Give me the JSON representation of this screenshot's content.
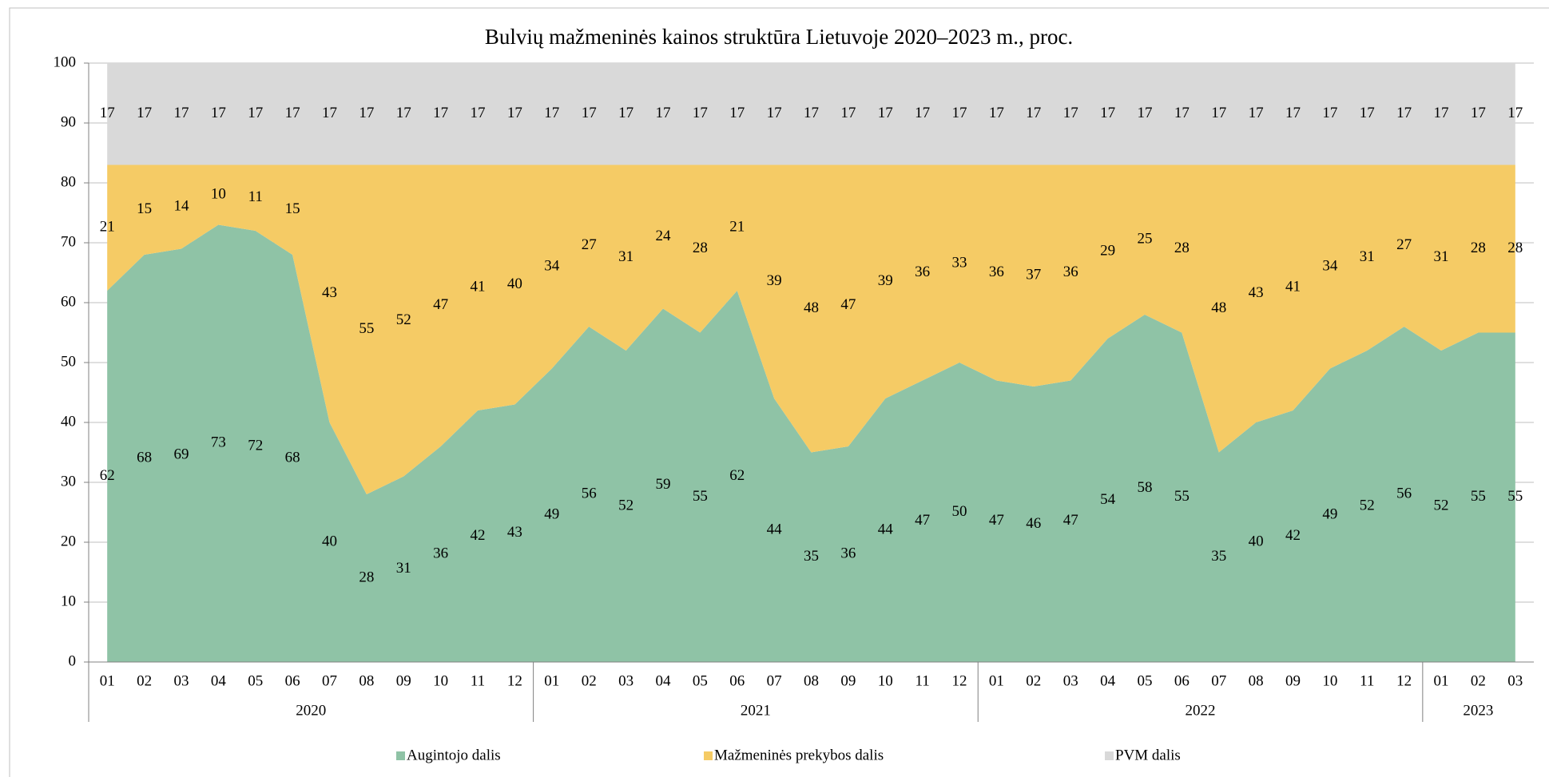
{
  "chart_data": {
    "type": "stacked_area",
    "title": "Bulvių mažmeninės kainos struktūra Lietuvoje 2020–2023 m., proc.",
    "groups": [
      {
        "label": "2020",
        "categories": [
          "01",
          "02",
          "03",
          "04",
          "05",
          "06",
          "07",
          "08",
          "09",
          "10",
          "11",
          "12"
        ]
      },
      {
        "label": "2021",
        "categories": [
          "01",
          "02",
          "03",
          "04",
          "05",
          "06",
          "07",
          "08",
          "09",
          "10",
          "11",
          "12"
        ]
      },
      {
        "label": "2022",
        "categories": [
          "01",
          "02",
          "03",
          "04",
          "05",
          "06",
          "07",
          "08",
          "09",
          "10",
          "11",
          "12"
        ]
      },
      {
        "label": "2023",
        "categories": [
          "01",
          "02",
          "03"
        ]
      }
    ],
    "series": [
      {
        "name": "Augintojo dalis",
        "color": "#8fc3a6",
        "values": [
          62,
          68,
          69,
          73,
          72,
          68,
          40,
          28,
          31,
          36,
          42,
          43,
          49,
          56,
          52,
          59,
          55,
          62,
          44,
          35,
          36,
          44,
          47,
          50,
          47,
          46,
          47,
          54,
          58,
          55,
          35,
          40,
          42,
          49,
          52,
          56,
          52,
          55,
          55
        ]
      },
      {
        "name": "Mažmeninės prekybos dalis",
        "color": "#f5cb65",
        "values": [
          21,
          15,
          14,
          10,
          11,
          15,
          43,
          55,
          52,
          47,
          41,
          40,
          34,
          27,
          31,
          24,
          28,
          21,
          39,
          48,
          47,
          39,
          36,
          33,
          36,
          37,
          36,
          29,
          25,
          28,
          48,
          43,
          41,
          34,
          31,
          27,
          31,
          28,
          28
        ]
      },
      {
        "name": "PVM dalis",
        "color": "#d9d9d9",
        "values": [
          17,
          17,
          17,
          17,
          17,
          17,
          17,
          17,
          17,
          17,
          17,
          17,
          17,
          17,
          17,
          17,
          17,
          17,
          17,
          17,
          17,
          17,
          17,
          17,
          17,
          17,
          17,
          17,
          17,
          17,
          17,
          17,
          17,
          17,
          17,
          17,
          17,
          17,
          17
        ]
      }
    ],
    "ylim": [
      0,
      100
    ],
    "yticks": [
      0,
      10,
      20,
      30,
      40,
      50,
      60,
      70,
      80,
      90,
      100
    ],
    "grid": true,
    "legend": "bottom"
  }
}
